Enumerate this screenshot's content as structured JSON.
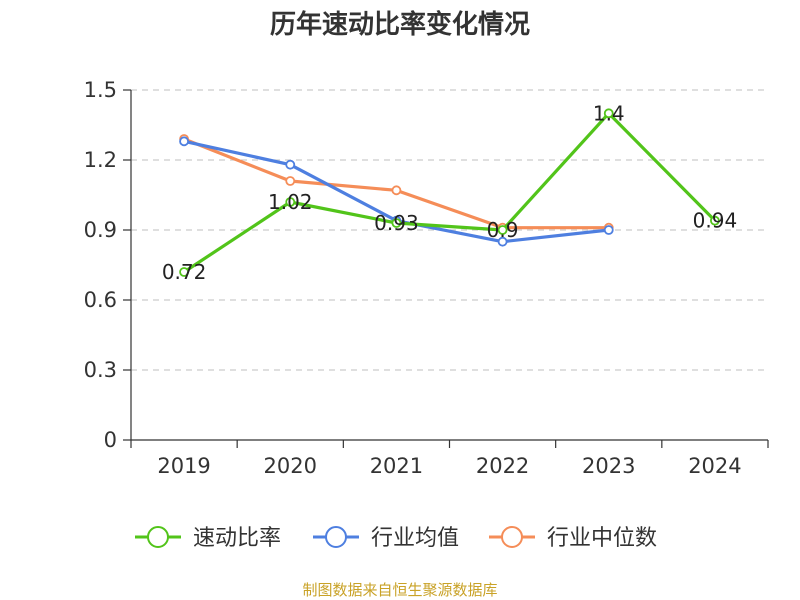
{
  "chart_data": {
    "type": "line",
    "title": "历年速动比率变化情况",
    "categories": [
      "2019",
      "2020",
      "2021",
      "2022",
      "2023",
      "2024"
    ],
    "yticks": [
      "0",
      "0.3",
      "0.6",
      "0.9",
      "1.2",
      "1.5"
    ],
    "ylim": [
      0,
      1.5
    ],
    "grid": true,
    "legend_position": "bottom",
    "series": [
      {
        "name": "速动比率",
        "color": "#52c41a",
        "values": [
          0.72,
          1.02,
          0.93,
          0.9,
          1.4,
          0.94
        ],
        "labels": [
          "0.72",
          "1.02",
          "0.93",
          "0.9",
          "1.4",
          "0.94"
        ]
      },
      {
        "name": "行业均值",
        "color": "#4e7fe0",
        "values": [
          1.28,
          1.18,
          0.94,
          0.85,
          0.9,
          null
        ]
      },
      {
        "name": "行业中位数",
        "color": "#f58d58",
        "values": [
          1.29,
          1.11,
          1.07,
          0.91,
          0.91,
          null
        ]
      }
    ],
    "source": "制图数据来自恒生聚源数据库"
  }
}
